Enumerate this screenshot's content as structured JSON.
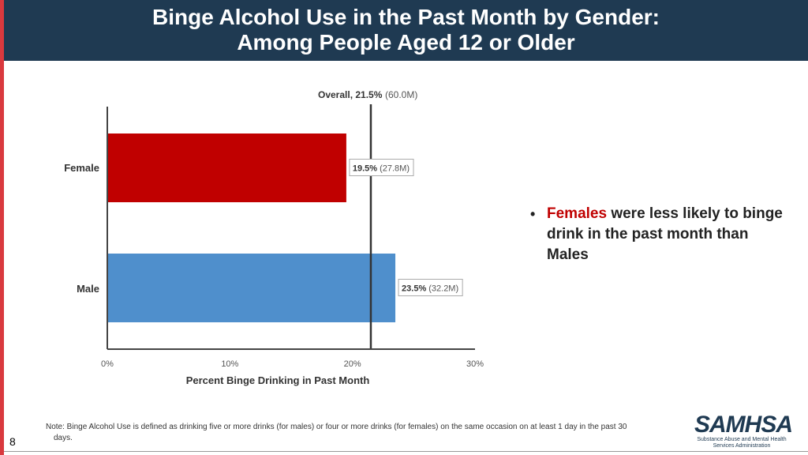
{
  "slide": {
    "title_line1": "Binge Alcohol Use in the Past Month by Gender:",
    "title_line2": "Among People Aged 12 or Older",
    "page_number": "8",
    "bullet_highlight": "Females",
    "bullet_rest": " were less likely to binge drink in the past month than Males",
    "note": "Note: Binge Alcohol Use is defined as drinking five or more drinks (for males) or four or more drinks (for females) on the same occasion on at least 1 day in the past 30",
    "note_cont": "days.",
    "logo_text": "SAMHSA",
    "logo_sub1": "Substance Abuse and Mental Health",
    "logo_sub2": "Services Administration"
  },
  "colors": {
    "header_bg": "#1f3a52",
    "accent_stripe": "#d9393e",
    "female_bar": "#c00000",
    "male_bar": "#4f8fcc",
    "reference_line": "#333333"
  },
  "chart_data": {
    "type": "bar",
    "orientation": "horizontal",
    "categories": [
      "Female",
      "Male"
    ],
    "values": [
      19.5,
      23.5
    ],
    "value_labels": [
      {
        "pct": "19.5%",
        "count": "(27.8M)"
      },
      {
        "pct": "23.5%",
        "count": "(32.2M)"
      }
    ],
    "reference": {
      "value": 21.5,
      "label_pct": "Overall, 21.5%",
      "label_count": "(60.0M)"
    },
    "xlabel": "Percent Binge Drinking in Past Month",
    "xlim": [
      0,
      30
    ],
    "xticks": [
      "0%",
      "10%",
      "20%",
      "30%"
    ],
    "xtick_values": [
      0,
      10,
      20,
      30
    ],
    "grid": false
  }
}
